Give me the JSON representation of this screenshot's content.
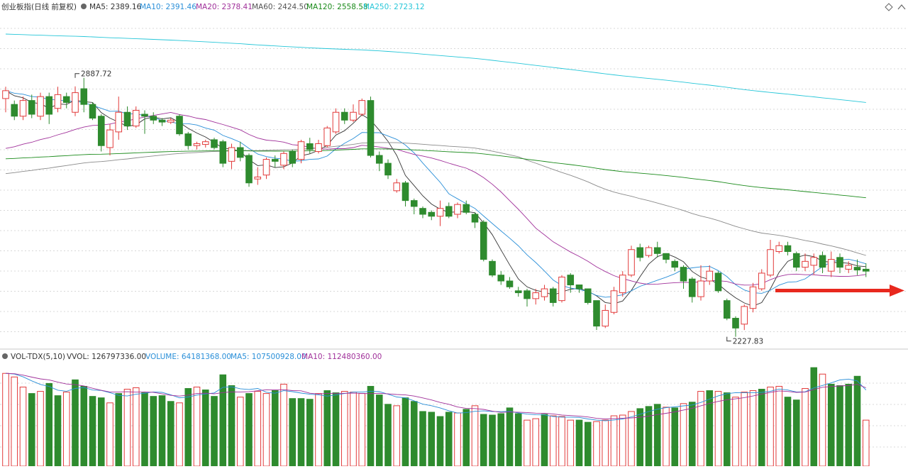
{
  "header": {
    "title": "创业板指(日线 前复权)",
    "indicators": [
      {
        "label": "MA5: 2389.16",
        "color": "#333333"
      },
      {
        "label": "MA10: 2391.46",
        "color": "#2a8fd8"
      },
      {
        "label": "MA20: 2378.41",
        "color": "#a0309a"
      },
      {
        "label": "MA60: 2424.50",
        "color": "#555555"
      },
      {
        "label": "MA120: 2558.58",
        "color": "#1a8a1a"
      },
      {
        "label": "MA250: 2723.12",
        "color": "#26c6d8"
      }
    ]
  },
  "volume_header": {
    "title": "VOL-TDX(5,10)",
    "indicators": [
      {
        "label": "VVOL: 126797336.00",
        "color": "#333333"
      },
      {
        "label": "VOLUME: 64181368.00",
        "color": "#2a8fd8"
      },
      {
        "label": "MA5: 107500928.00",
        "color": "#2a8fd8"
      },
      {
        "label": "MA10: 112480360.00",
        "color": "#a0309a"
      }
    ]
  },
  "colors": {
    "up": "#e23b3b",
    "down": "#2e8b2e",
    "ma5": "#333333",
    "ma10": "#2a8fd8",
    "ma20": "#a0309a",
    "ma60": "#8a8a8a",
    "ma120": "#1a8a1a",
    "ma250": "#26c6d8",
    "arrow": "#e8281e",
    "grid": "#d8d8d8"
  },
  "chart_data": {
    "type": "candlestick",
    "title": "创业板指(日线 前复权)",
    "price_range": [
      2200,
      3050
    ],
    "volume_range": [
      0,
      145000000
    ],
    "annotations": [
      {
        "label": "2887.72",
        "index": 8,
        "value": 2887.72,
        "kind": "high"
      },
      {
        "label": "2227.83",
        "index": 83,
        "value": 2227.83,
        "kind": "low"
      }
    ],
    "candles": [
      [
        2835,
        2855,
        2800,
        2865
      ],
      [
        2820,
        2790,
        2780,
        2830
      ],
      [
        2790,
        2830,
        2780,
        2840
      ],
      [
        2830,
        2795,
        2785,
        2845
      ],
      [
        2790,
        2840,
        2780,
        2850
      ],
      [
        2840,
        2795,
        2770,
        2850
      ],
      [
        2810,
        2845,
        2800,
        2865
      ],
      [
        2840,
        2825,
        2810,
        2850
      ],
      [
        2800,
        2850,
        2790,
        2866
      ],
      [
        2860,
        2820,
        2800,
        2887.72
      ],
      [
        2820,
        2785,
        2780,
        2825
      ],
      [
        2790,
        2715,
        2700,
        2795
      ],
      [
        2710,
        2755,
        2690,
        2770
      ],
      [
        2750,
        2800,
        2730,
        2840
      ],
      [
        2800,
        2765,
        2755,
        2815
      ],
      [
        2765,
        2805,
        2760,
        2815
      ],
      [
        2795,
        2790,
        2745,
        2805
      ],
      [
        2790,
        2780,
        2770,
        2800
      ],
      [
        2780,
        2775,
        2765,
        2785
      ],
      [
        2775,
        2780,
        2770,
        2785
      ],
      [
        2790,
        2745,
        2740,
        2795
      ],
      [
        2745,
        2715,
        2705,
        2750
      ],
      [
        2715,
        2720,
        2705,
        2725
      ],
      [
        2718,
        2725,
        2710,
        2730
      ],
      [
        2730,
        2710,
        2705,
        2735
      ],
      [
        2725,
        2670,
        2660,
        2730
      ],
      [
        2675,
        2710,
        2655,
        2720
      ],
      [
        2710,
        2685,
        2675,
        2725
      ],
      [
        2690,
        2620,
        2610,
        2695
      ],
      [
        2630,
        2635,
        2615,
        2660
      ],
      [
        2640,
        2680,
        2630,
        2685
      ],
      [
        2680,
        2675,
        2660,
        2690
      ],
      [
        2665,
        2695,
        2655,
        2700
      ],
      [
        2700,
        2670,
        2660,
        2705
      ],
      [
        2680,
        2725,
        2670,
        2730
      ],
      [
        2720,
        2705,
        2695,
        2735
      ],
      [
        2700,
        2720,
        2695,
        2730
      ],
      [
        2715,
        2760,
        2710,
        2765
      ],
      [
        2750,
        2800,
        2745,
        2810
      ],
      [
        2800,
        2780,
        2770,
        2810
      ],
      [
        2780,
        2800,
        2775,
        2820
      ],
      [
        2795,
        2830,
        2790,
        2835
      ],
      [
        2830,
        2690,
        2685,
        2840
      ],
      [
        2690,
        2670,
        2650,
        2700
      ],
      [
        2670,
        2640,
        2630,
        2680
      ],
      [
        2600,
        2620,
        2595,
        2630
      ],
      [
        2620,
        2575,
        2560,
        2625
      ],
      [
        2575,
        2560,
        2540,
        2580
      ],
      [
        2555,
        2540,
        2530,
        2560
      ],
      [
        2545,
        2535,
        2525,
        2550
      ],
      [
        2535,
        2555,
        2510,
        2575
      ],
      [
        2560,
        2535,
        2530,
        2570
      ],
      [
        2540,
        2565,
        2530,
        2570
      ],
      [
        2565,
        2545,
        2540,
        2575
      ],
      [
        2540,
        2520,
        2505,
        2545
      ],
      [
        2520,
        2425,
        2420,
        2525
      ],
      [
        2420,
        2385,
        2380,
        2425
      ],
      [
        2385,
        2370,
        2360,
        2395
      ],
      [
        2370,
        2355,
        2350,
        2380
      ],
      [
        2345,
        2340,
        2330,
        2355
      ],
      [
        2345,
        2325,
        2305,
        2350
      ],
      [
        2325,
        2340,
        2310,
        2350
      ],
      [
        2330,
        2350,
        2320,
        2360
      ],
      [
        2350,
        2315,
        2305,
        2355
      ],
      [
        2320,
        2380,
        2315,
        2385
      ],
      [
        2385,
        2360,
        2340,
        2390
      ],
      [
        2360,
        2350,
        2340,
        2360
      ],
      [
        2350,
        2315,
        2310,
        2350
      ],
      [
        2320,
        2255,
        2245,
        2320
      ],
      [
        2255,
        2295,
        2250,
        2310
      ],
      [
        2290,
        2345,
        2285,
        2355
      ],
      [
        2340,
        2385,
        2330,
        2395
      ],
      [
        2385,
        2450,
        2380,
        2460
      ],
      [
        2455,
        2430,
        2420,
        2465
      ],
      [
        2435,
        2455,
        2430,
        2460
      ],
      [
        2455,
        2440,
        2430,
        2470
      ],
      [
        2440,
        2425,
        2415,
        2440
      ],
      [
        2420,
        2405,
        2395,
        2425
      ],
      [
        2405,
        2370,
        2350,
        2410
      ],
      [
        2375,
        2330,
        2315,
        2380
      ],
      [
        2330,
        2370,
        2320,
        2410
      ],
      [
        2370,
        2395,
        2360,
        2410
      ],
      [
        2390,
        2345,
        2340,
        2395
      ],
      [
        2320,
        2275,
        2270,
        2325
      ],
      [
        2275,
        2250,
        2227.83,
        2280
      ],
      [
        2260,
        2305,
        2245,
        2310
      ],
      [
        2300,
        2355,
        2290,
        2365
      ],
      [
        2350,
        2390,
        2345,
        2400
      ],
      [
        2385,
        2450,
        2380,
        2475
      ],
      [
        2445,
        2460,
        2440,
        2470
      ],
      [
        2460,
        2445,
        2435,
        2470
      ],
      [
        2440,
        2405,
        2395,
        2445
      ],
      [
        2405,
        2420,
        2395,
        2440
      ],
      [
        2410,
        2430,
        2385,
        2440
      ],
      [
        2435,
        2405,
        2390,
        2445
      ],
      [
        2395,
        2425,
        2380,
        2445
      ],
      [
        2430,
        2405,
        2390,
        2440
      ],
      [
        2400,
        2410,
        2390,
        2420
      ],
      [
        2405,
        2398,
        2385,
        2425
      ],
      [
        2400,
        2395,
        2380,
        2415
      ]
    ],
    "volume": [
      [
        129,
        1
      ],
      [
        124,
        1
      ],
      [
        110,
        1
      ],
      [
        101,
        0
      ],
      [
        104,
        1
      ],
      [
        115,
        0
      ],
      [
        98,
        0
      ],
      [
        103,
        1
      ],
      [
        120,
        0
      ],
      [
        111,
        0
      ],
      [
        97,
        0
      ],
      [
        95,
        0
      ],
      [
        88,
        1
      ],
      [
        101,
        0
      ],
      [
        107,
        1
      ],
      [
        109,
        1
      ],
      [
        102,
        0
      ],
      [
        97,
        0
      ],
      [
        98,
        0
      ],
      [
        90,
        0
      ],
      [
        88,
        1
      ],
      [
        108,
        0
      ],
      [
        110,
        1
      ],
      [
        106,
        0
      ],
      [
        97,
        0
      ],
      [
        127,
        0
      ],
      [
        112,
        0
      ],
      [
        96,
        1
      ],
      [
        101,
        0
      ],
      [
        104,
        1
      ],
      [
        101,
        1
      ],
      [
        105,
        0
      ],
      [
        114,
        1
      ],
      [
        94,
        0
      ],
      [
        94,
        0
      ],
      [
        93,
        0
      ],
      [
        101,
        1
      ],
      [
        105,
        0
      ],
      [
        102,
        0
      ],
      [
        104,
        1
      ],
      [
        103,
        1
      ],
      [
        101,
        1
      ],
      [
        111,
        0
      ],
      [
        99,
        0
      ],
      [
        86,
        0
      ],
      [
        84,
        1
      ],
      [
        95,
        0
      ],
      [
        90,
        0
      ],
      [
        76,
        0
      ],
      [
        75,
        0
      ],
      [
        69,
        0
      ],
      [
        75,
        0
      ],
      [
        74,
        1
      ],
      [
        79,
        0
      ],
      [
        84,
        1
      ],
      [
        72,
        0
      ],
      [
        71,
        0
      ],
      [
        73,
        0
      ],
      [
        81,
        0
      ],
      [
        73,
        0
      ],
      [
        64,
        1
      ],
      [
        66,
        1
      ],
      [
        72,
        0
      ],
      [
        70,
        1
      ],
      [
        69,
        1
      ],
      [
        64,
        1
      ],
      [
        64,
        0
      ],
      [
        61,
        0
      ],
      [
        62,
        1
      ],
      [
        64,
        1
      ],
      [
        70,
        1
      ],
      [
        71,
        1
      ],
      [
        76,
        1
      ],
      [
        80,
        0
      ],
      [
        83,
        0
      ],
      [
        86,
        0
      ],
      [
        82,
        1
      ],
      [
        81,
        0
      ],
      [
        87,
        1
      ],
      [
        89,
        0
      ],
      [
        104,
        1
      ],
      [
        105,
        0
      ],
      [
        104,
        1
      ],
      [
        102,
        0
      ],
      [
        96,
        1
      ],
      [
        103,
        1
      ],
      [
        105,
        1
      ],
      [
        107,
        0
      ],
      [
        110,
        1
      ],
      [
        111,
        1
      ],
      [
        96,
        0
      ],
      [
        92,
        0
      ],
      [
        108,
        1
      ],
      [
        137,
        0
      ],
      [
        128,
        1
      ],
      [
        114,
        0
      ],
      [
        112,
        0
      ],
      [
        114,
        0
      ],
      [
        125,
        0
      ],
      [
        64,
        1
      ]
    ]
  }
}
